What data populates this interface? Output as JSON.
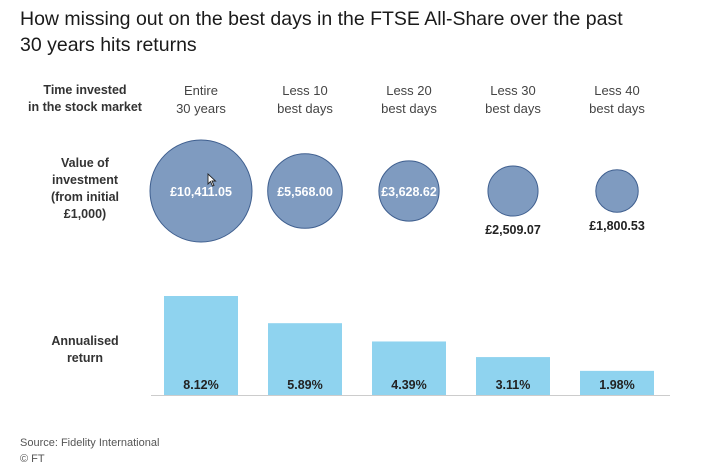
{
  "title_line1": "How missing out on the best days in the FTSE All-Share over the past",
  "title_line2": "30 years hits returns",
  "row_header_time_line1": "Time invested",
  "row_header_time_line2": "in the stock market",
  "row_header_value": [
    "Value of",
    "investment",
    "(from initial",
    "£1,000)"
  ],
  "row_header_return": [
    "Annualised",
    "return"
  ],
  "source": "Source: Fidelity International",
  "copyright": "© FT",
  "colors": {
    "bubble_fill": "#7f9bc0",
    "bubble_stroke": "#3f5f8f",
    "bar_fill": "#8fd3ef",
    "axis": "#cccccc"
  },
  "chart_data": {
    "type": "bar",
    "categories": [
      [
        "Entire",
        "30 years"
      ],
      [
        "Less 10",
        "best days"
      ],
      [
        "Less 20",
        "best days"
      ],
      [
        "Less 30",
        "best days"
      ],
      [
        "Less 40",
        "best days"
      ]
    ],
    "value_of_investment": [
      10411.05,
      5568.0,
      3628.62,
      2509.07,
      1800.53
    ],
    "value_labels": [
      "£10,411.05",
      "£5,568.00",
      "£3,628.62",
      "£2,509.07",
      "£1,800.53"
    ],
    "annualised_return": [
      8.12,
      5.89,
      4.39,
      3.11,
      1.98
    ],
    "return_labels": [
      "8.12%",
      "5.89%",
      "4.39%",
      "3.11%",
      "1.98%"
    ],
    "ylim": [
      0,
      8.12
    ]
  }
}
